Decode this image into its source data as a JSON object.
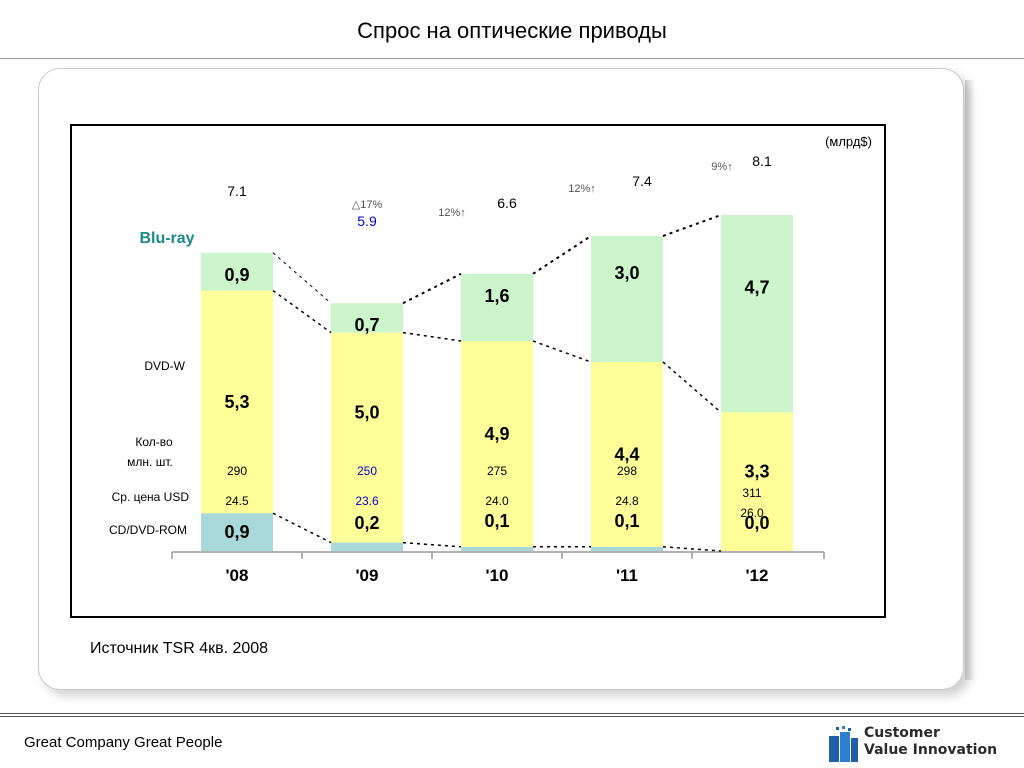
{
  "page": {
    "title": "Спрос на оптические приводы",
    "source": "Источник TSR 4кв. 2008",
    "footer": "Great Company Great People",
    "logo": {
      "line1": "Customer",
      "line2": "Value Innovation"
    }
  },
  "colors": {
    "bluray": "#ccf5cc",
    "dvdw": "#ffff99",
    "cdrom": "#a9d8d8",
    "bluray_label": "#1a8a8a",
    "growth_text": "#555555",
    "highlight": "#0000cc"
  },
  "chart_data": {
    "type": "bar",
    "stacked": true,
    "unit": "(млрд$)",
    "categories": [
      "'08",
      "'09",
      "'10",
      "'11",
      "'12"
    ],
    "series": [
      {
        "name": "CD/DVD-ROM",
        "values": [
          0.9,
          0.2,
          0.1,
          0.1,
          0.0
        ],
        "labels": [
          "0,9",
          "0,2",
          "0,1",
          "0,1",
          "0,0"
        ]
      },
      {
        "name": "DVD-W",
        "values": [
          5.3,
          5.0,
          4.9,
          4.4,
          3.3
        ],
        "labels": [
          "5,3",
          "5,0",
          "4,9",
          "4,4",
          "3,3"
        ]
      },
      {
        "name": "Blu-ray",
        "values": [
          0.9,
          0.7,
          1.6,
          3.0,
          4.7
        ],
        "labels": [
          "0,9",
          "0,7",
          "1,6",
          "3,0",
          "4,7"
        ]
      }
    ],
    "totals": [
      "7.1",
      "5.9",
      "6.6",
      "7.4",
      "8.1"
    ],
    "growth": [
      "",
      "△17%",
      "12%↑",
      "12%↑",
      "9%↑"
    ],
    "row_labels": {
      "quantity": "Кол-во\nмлн. шт.",
      "price": "Ср. цена USD"
    },
    "quantity": [
      "290",
      "250",
      "275",
      "298",
      "311"
    ],
    "avg_price": [
      "24.5",
      "23.6",
      "24.0",
      "24.8",
      "26.0"
    ],
    "highlight_index": 1
  }
}
